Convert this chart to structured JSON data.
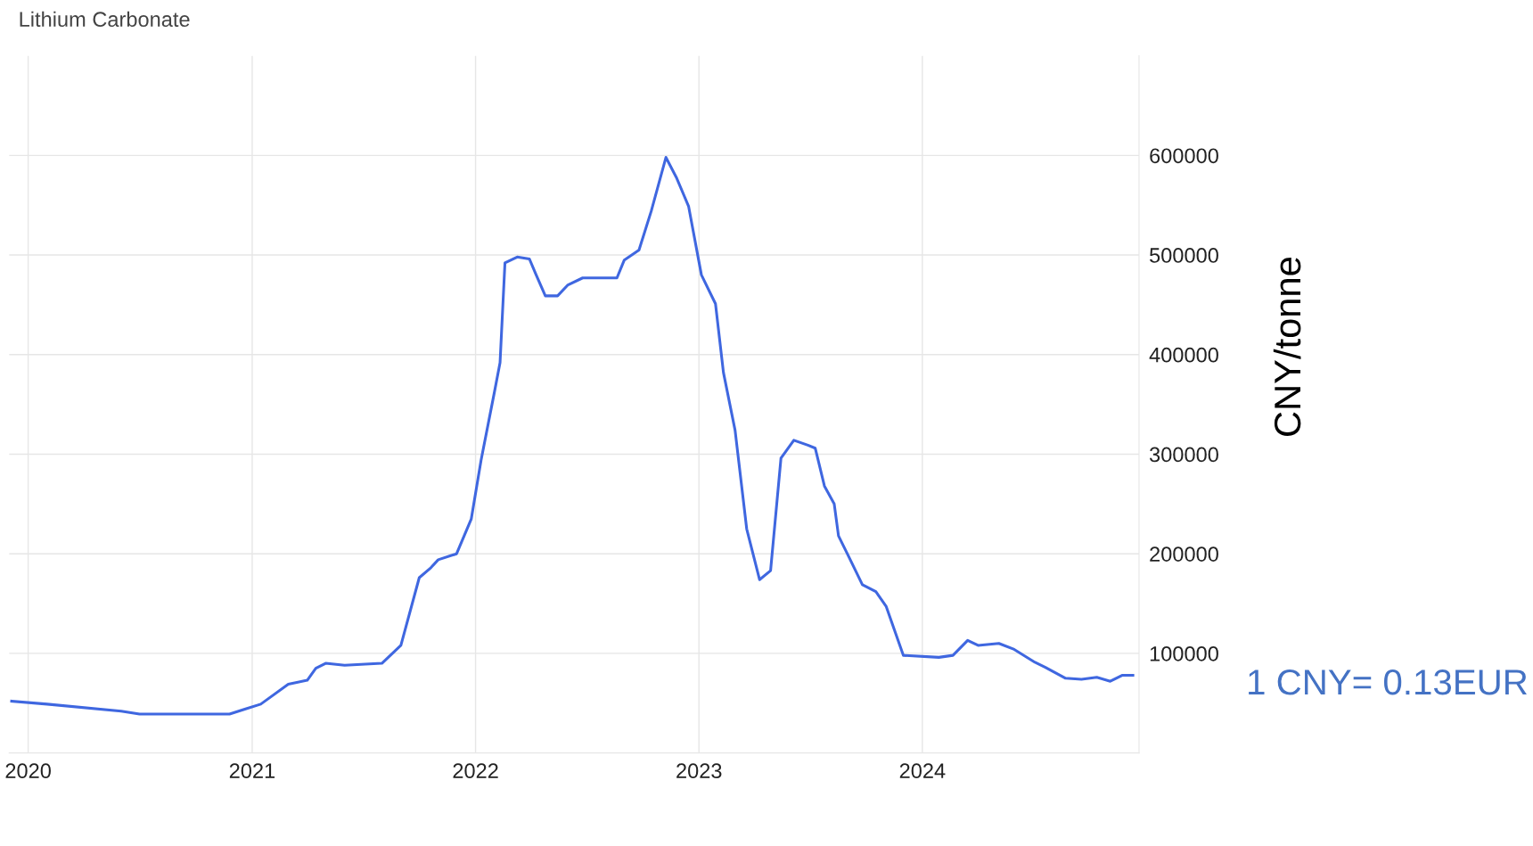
{
  "chart_data": {
    "type": "line",
    "title": "Lithium Carbonate",
    "ylabel": "CNY/tonne",
    "annotations": [
      "1 CNY= 0.13EUR"
    ],
    "x": [
      "2019-12-05",
      "2020-02-01",
      "2020-06-01",
      "2020-07-01",
      "2020-11-25",
      "2020-12-20",
      "2021-01-15",
      "2021-03-01",
      "2021-04-01",
      "2021-04-15",
      "2021-05-01",
      "2021-06-01",
      "2021-08-01",
      "2021-09-01",
      "2021-10-01",
      "2021-10-20",
      "2021-11-01",
      "2021-12-01",
      "2021-12-25",
      "2022-01-10",
      "2022-02-01",
      "2022-02-10",
      "2022-02-18",
      "2022-03-10",
      "2022-03-30",
      "2022-04-10",
      "2022-04-25",
      "2022-05-15",
      "2022-06-01",
      "2022-06-25",
      "2022-08-20",
      "2022-09-01",
      "2022-09-25",
      "2022-10-15",
      "2022-11-08",
      "2022-11-25",
      "2022-12-15",
      "2023-01-05",
      "2023-01-28",
      "2023-02-10",
      "2023-03-01",
      "2023-03-20",
      "2023-04-10",
      "2023-04-28",
      "2023-05-15",
      "2023-06-05",
      "2023-06-28",
      "2023-07-10",
      "2023-07-25",
      "2023-08-10",
      "2023-08-17",
      "2023-09-02",
      "2023-09-25",
      "2023-10-17",
      "2023-11-03",
      "2023-12-01",
      "2024-01-28",
      "2024-02-20",
      "2024-03-15",
      "2024-04-01",
      "2024-05-05",
      "2024-05-30",
      "2024-07-03",
      "2024-07-20",
      "2024-08-22",
      "2024-09-17",
      "2024-10-12",
      "2024-11-03",
      "2024-11-23",
      "2024-12-10"
    ],
    "series": [
      {
        "color": "#3f67e0",
        "values": [
          52000,
          49000,
          42000,
          39000,
          39000,
          44000,
          49000,
          69000,
          73000,
          85000,
          90000,
          88000,
          90000,
          108000,
          176000,
          186000,
          194000,
          200000,
          235000,
          294000,
          363000,
          392000,
          492000,
          498000,
          496000,
          480000,
          459000,
          459000,
          470000,
          477000,
          477000,
          495000,
          505000,
          544000,
          598000,
          578000,
          549000,
          480000,
          451000,
          382000,
          324000,
          225000,
          174000,
          183000,
          296000,
          314000,
          309000,
          306000,
          268000,
          250000,
          218000,
          198000,
          169000,
          162000,
          147000,
          98000,
          96000,
          98000,
          113000,
          108000,
          110000,
          104000,
          91000,
          86000,
          75000,
          74000,
          76000,
          72000,
          78000,
          78000
        ]
      }
    ],
    "xlim": [
      "2019-12-01",
      "2024-12-20"
    ],
    "xticks": [
      {
        "value": "2020-01-01",
        "label": "2020"
      },
      {
        "value": "2021-01-01",
        "label": "2021"
      },
      {
        "value": "2022-01-01",
        "label": "2022"
      },
      {
        "value": "2023-01-01",
        "label": "2023"
      },
      {
        "value": "2024-01-01",
        "label": "2024"
      }
    ],
    "ylim": [
      0,
      700000
    ],
    "yticks": [
      100000,
      200000,
      300000,
      400000,
      500000,
      600000
    ],
    "grid": true,
    "marker": "none",
    "line_style": "solid"
  }
}
